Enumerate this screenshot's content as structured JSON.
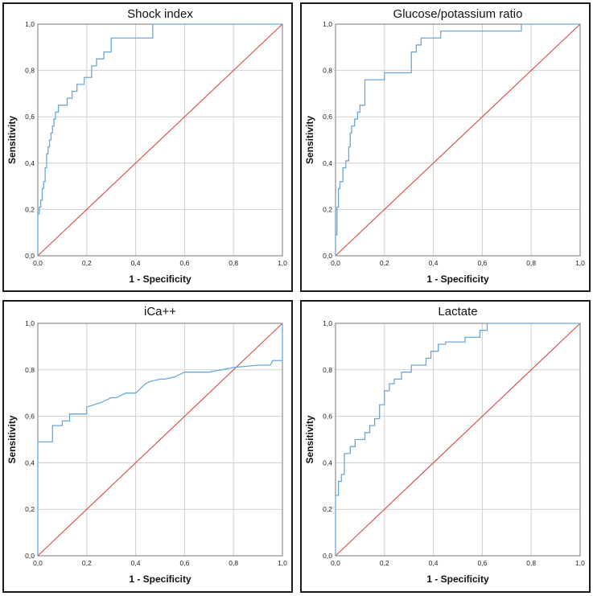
{
  "chart_data": [
    {
      "type": "line",
      "title": "Shock index",
      "xlabel": "1 - Specificity",
      "ylabel": "Sensitivity",
      "xlim": [
        0,
        1
      ],
      "ylim": [
        0,
        1
      ],
      "x_ticks": [
        "0,0",
        "0,2",
        "0,4",
        "0,6",
        "0,8",
        "1,0"
      ],
      "y_ticks": [
        "0,0",
        "0,2",
        "0,4",
        "0,6",
        "0,8",
        "1,0"
      ],
      "grid": true,
      "colors": {
        "roc": "#6aa8d8",
        "reference": "#d9534f"
      },
      "series": [
        {
          "x": [
            0,
            0,
            0.006,
            0.006,
            0.012,
            0.012,
            0.018,
            0.018,
            0.024,
            0.024,
            0.03,
            0.03,
            0.036,
            0.036,
            0.042,
            0.042,
            0.048,
            0.048,
            0.054,
            0.054,
            0.06,
            0.06,
            0.066,
            0.066,
            0.072,
            0.072,
            0.084,
            0.084,
            0.12,
            0.12,
            0.14,
            0.14,
            0.16,
            0.16,
            0.19,
            0.19,
            0.22,
            0.22,
            0.24,
            0.24,
            0.27,
            0.27,
            0.3,
            0.3,
            0.47,
            0.47,
            1.0
          ],
          "y": [
            0,
            0.18,
            0.18,
            0.21,
            0.21,
            0.24,
            0.24,
            0.29,
            0.29,
            0.32,
            0.32,
            0.38,
            0.38,
            0.44,
            0.44,
            0.47,
            0.47,
            0.5,
            0.5,
            0.53,
            0.53,
            0.56,
            0.56,
            0.59,
            0.59,
            0.62,
            0.62,
            0.65,
            0.65,
            0.68,
            0.68,
            0.71,
            0.71,
            0.74,
            0.74,
            0.77,
            0.77,
            0.82,
            0.82,
            0.85,
            0.85,
            0.88,
            0.88,
            0.94,
            0.94,
            1.0,
            1.0
          ]
        },
        {
          "x": [
            0,
            1
          ],
          "y": [
            0,
            1
          ]
        }
      ]
    },
    {
      "type": "line",
      "title": "Glucose/potassium ratio",
      "xlabel": "1 - Specificity",
      "ylabel": "Sensitivity",
      "xlim": [
        0,
        1
      ],
      "ylim": [
        0,
        1
      ],
      "x_ticks": [
        "0,0",
        "0,2",
        "0,4",
        "0,6",
        "0,8",
        "1,0"
      ],
      "y_ticks": [
        "0,0",
        "0,2",
        "0,4",
        "0,6",
        "0,8",
        "1,0"
      ],
      "grid": true,
      "colors": {
        "roc": "#6aa8d8",
        "reference": "#d9534f"
      },
      "series": [
        {
          "x": [
            0,
            0,
            0.006,
            0.006,
            0.012,
            0.012,
            0.018,
            0.018,
            0.03,
            0.03,
            0.042,
            0.042,
            0.054,
            0.054,
            0.06,
            0.06,
            0.066,
            0.066,
            0.078,
            0.078,
            0.09,
            0.09,
            0.1,
            0.1,
            0.12,
            0.12,
            0.2,
            0.2,
            0.31,
            0.31,
            0.33,
            0.33,
            0.35,
            0.35,
            0.43,
            0.43,
            0.76,
            0.76,
            1.0
          ],
          "y": [
            0,
            0.09,
            0.09,
            0.21,
            0.21,
            0.29,
            0.29,
            0.32,
            0.32,
            0.38,
            0.38,
            0.41,
            0.41,
            0.47,
            0.47,
            0.53,
            0.53,
            0.56,
            0.56,
            0.59,
            0.59,
            0.62,
            0.62,
            0.65,
            0.65,
            0.76,
            0.76,
            0.79,
            0.79,
            0.88,
            0.88,
            0.91,
            0.91,
            0.94,
            0.94,
            0.97,
            0.97,
            1.0,
            1.0
          ]
        },
        {
          "x": [
            0,
            1
          ],
          "y": [
            0,
            1
          ]
        }
      ]
    },
    {
      "type": "line",
      "title": "iCa++",
      "xlabel": "1 - Specificity",
      "ylabel": "Sensitivity",
      "xlim": [
        0,
        1
      ],
      "ylim": [
        0,
        1
      ],
      "x_ticks": [
        "0,0",
        "0,2",
        "0,4",
        "0,6",
        "0,8",
        "1,0"
      ],
      "y_ticks": [
        "0,0",
        "0,2",
        "0,4",
        "0,6",
        "0,8",
        "1,0"
      ],
      "grid": true,
      "colors": {
        "roc": "#6aa8d8",
        "reference": "#d9534f"
      },
      "series": [
        {
          "x": [
            0,
            0,
            0.06,
            0.06,
            0.1,
            0.1,
            0.13,
            0.13,
            0.2,
            0.2,
            0.26,
            0.3,
            0.32,
            0.34,
            0.36,
            0.4,
            0.42,
            0.44,
            0.46,
            0.5,
            0.52,
            0.56,
            0.58,
            0.6,
            0.7,
            0.8,
            0.9,
            0.95,
            0.96,
            1.0,
            1.0
          ],
          "y": [
            0,
            0.49,
            0.49,
            0.56,
            0.56,
            0.58,
            0.58,
            0.61,
            0.61,
            0.64,
            0.66,
            0.68,
            0.68,
            0.69,
            0.7,
            0.7,
            0.72,
            0.74,
            0.75,
            0.76,
            0.76,
            0.77,
            0.78,
            0.79,
            0.79,
            0.81,
            0.82,
            0.82,
            0.84,
            0.84,
            1.0
          ]
        },
        {
          "x": [
            0,
            1
          ],
          "y": [
            0,
            1
          ]
        }
      ]
    },
    {
      "type": "line",
      "title": "Lactate",
      "xlabel": "1 - Specificity",
      "ylabel": "Sensitivity",
      "xlim": [
        0,
        1
      ],
      "ylim": [
        0,
        1
      ],
      "x_ticks": [
        "0,0",
        "0,2",
        "0,4",
        "0,6",
        "0,8",
        "1,0"
      ],
      "y_ticks": [
        "0,0",
        "0,2",
        "0,4",
        "0,6",
        "0,8",
        "1,0"
      ],
      "grid": true,
      "colors": {
        "roc": "#6aa8d8",
        "reference": "#d9534f"
      },
      "series": [
        {
          "x": [
            0,
            0,
            0.012,
            0.012,
            0.024,
            0.024,
            0.036,
            0.036,
            0.06,
            0.06,
            0.08,
            0.08,
            0.12,
            0.12,
            0.14,
            0.14,
            0.16,
            0.16,
            0.18,
            0.18,
            0.2,
            0.2,
            0.22,
            0.22,
            0.24,
            0.24,
            0.27,
            0.27,
            0.31,
            0.31,
            0.37,
            0.37,
            0.39,
            0.39,
            0.42,
            0.42,
            0.45,
            0.45,
            0.53,
            0.53,
            0.59,
            0.59,
            0.62,
            0.62,
            1.0
          ],
          "y": [
            0,
            0.26,
            0.26,
            0.32,
            0.32,
            0.35,
            0.35,
            0.44,
            0.44,
            0.47,
            0.47,
            0.5,
            0.5,
            0.53,
            0.53,
            0.56,
            0.56,
            0.59,
            0.59,
            0.65,
            0.65,
            0.71,
            0.71,
            0.74,
            0.74,
            0.76,
            0.76,
            0.79,
            0.79,
            0.82,
            0.82,
            0.85,
            0.85,
            0.88,
            0.88,
            0.91,
            0.91,
            0.92,
            0.92,
            0.94,
            0.94,
            0.97,
            0.97,
            1.0,
            1.0
          ]
        },
        {
          "x": [
            0,
            1
          ],
          "y": [
            0,
            1
          ]
        }
      ]
    }
  ]
}
